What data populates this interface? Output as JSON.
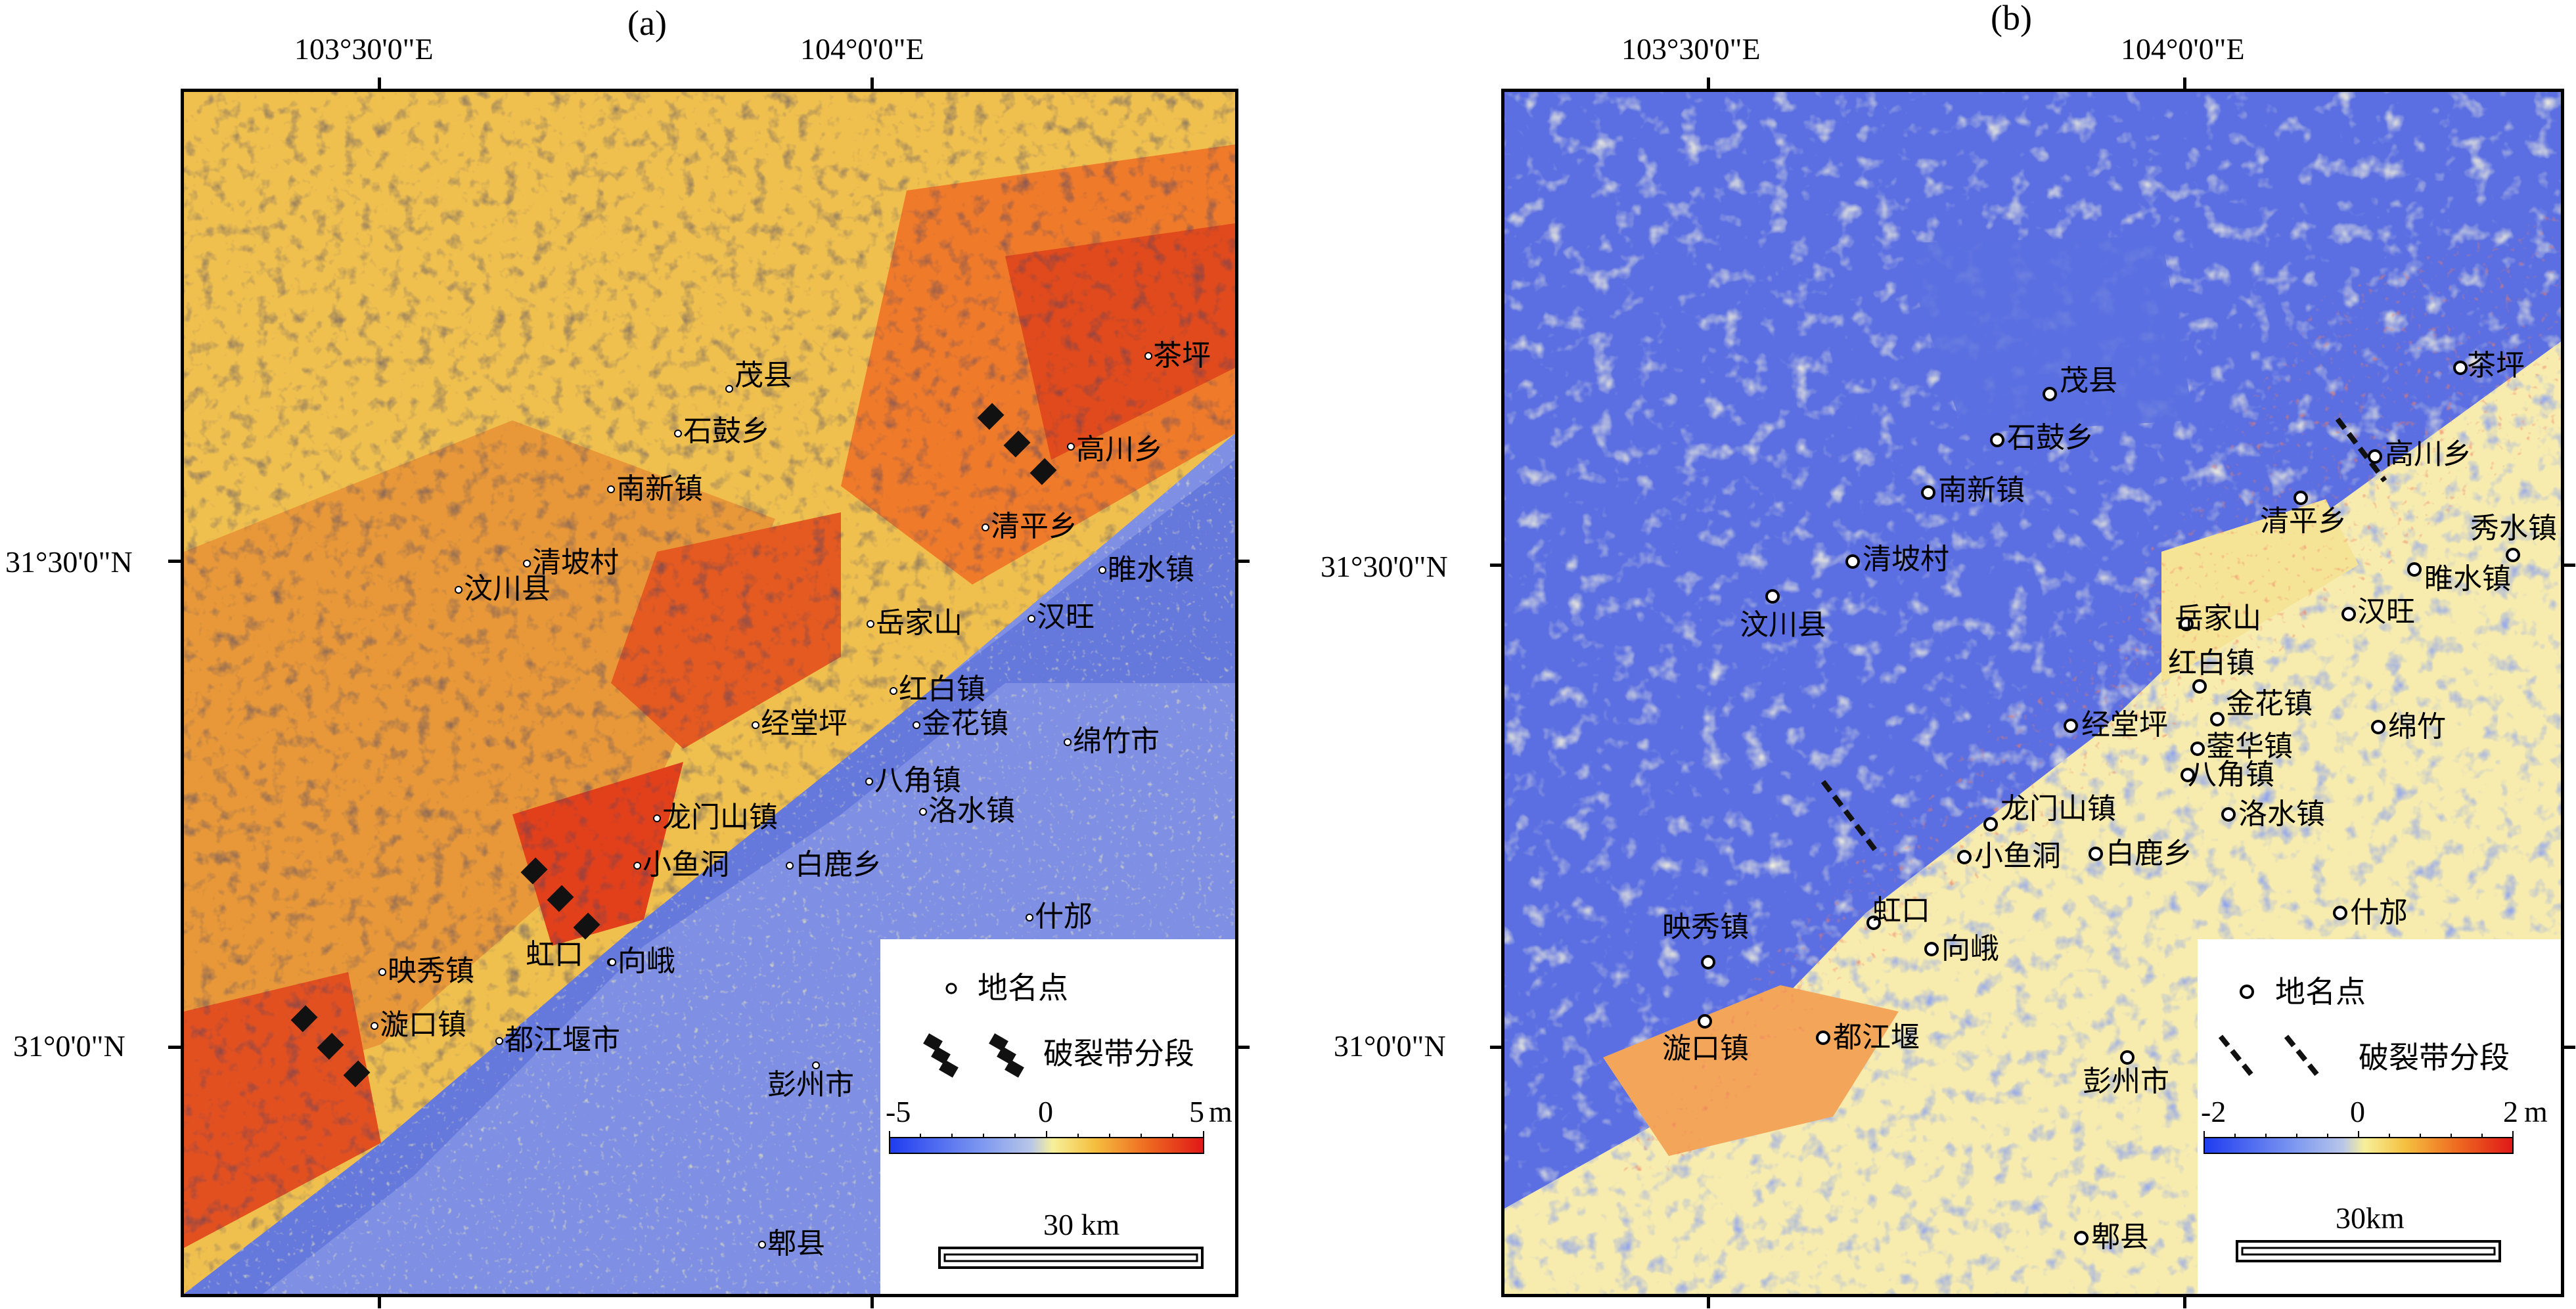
{
  "panels": [
    {
      "id": "a",
      "label": "(a)",
      "top_coords": [
        "103°30'0\"E",
        "104°0'0\"E"
      ],
      "left_coords": [
        "31°30'0\"N",
        "31°0'0\"N"
      ],
      "places": [
        "茶坪",
        "茂县",
        "高川乡",
        "石鼓乡",
        "南新镇",
        "清平乡",
        "清坡村",
        "睢水镇",
        "汶川县",
        "岳家山",
        "汉旺",
        "红白镇",
        "经堂坪",
        "金花镇",
        "绵竹市",
        "八角镇",
        "龙门山镇",
        "洛水镇",
        "小鱼洞",
        "白鹿乡",
        "什邡",
        "虹口",
        "映秀镇",
        "向峨",
        "漩口镇",
        "都江堰市",
        "彭州市",
        "郫县"
      ],
      "legend": {
        "point_label": "地名点",
        "fault_label": "破裂带分段",
        "scale_min": "-5",
        "scale_mid": "0",
        "scale_max": "5",
        "scale_unit": "m",
        "distance": "30 km"
      }
    },
    {
      "id": "b",
      "label": "(b)",
      "top_coords": [
        "103°30'0\"E",
        "104°0'0\"E"
      ],
      "left_coords": [
        "31°30'0\"N",
        "31°0'0\"N"
      ],
      "places": [
        "茂县",
        "茶坪",
        "石鼓乡",
        "高川乡",
        "南新镇",
        "清平乡",
        "秀水镇",
        "清坡村",
        "睢水镇",
        "汶川县",
        "汉旺",
        "岳家山",
        "红白镇",
        "金花镇",
        "绵竹",
        "经堂坪",
        "蓥华镇",
        "八角镇",
        "龙门山镇",
        "洛水镇",
        "小鱼洞",
        "白鹿乡",
        "什邡",
        "映秀镇",
        "虹口",
        "向峨",
        "漩口镇",
        "都江堰",
        "彭州市",
        "郫县"
      ],
      "legend": {
        "point_label": "地名点",
        "fault_label": "破裂带分段",
        "scale_min": "-2",
        "scale_mid": "0",
        "scale_max": "2",
        "scale_unit": "m",
        "distance": "30km"
      }
    }
  ],
  "colors": {
    "colorbar": [
      "#1f3cf0",
      "#7f9af0",
      "#b8c6e8",
      "#f7f09a",
      "#f5c040",
      "#ee6a20",
      "#e01818"
    ],
    "map_blue": "#5a6ee0",
    "map_yellow": "#f5e47a",
    "map_orange": "#f0a83c",
    "map_red": "#e03a1c"
  }
}
